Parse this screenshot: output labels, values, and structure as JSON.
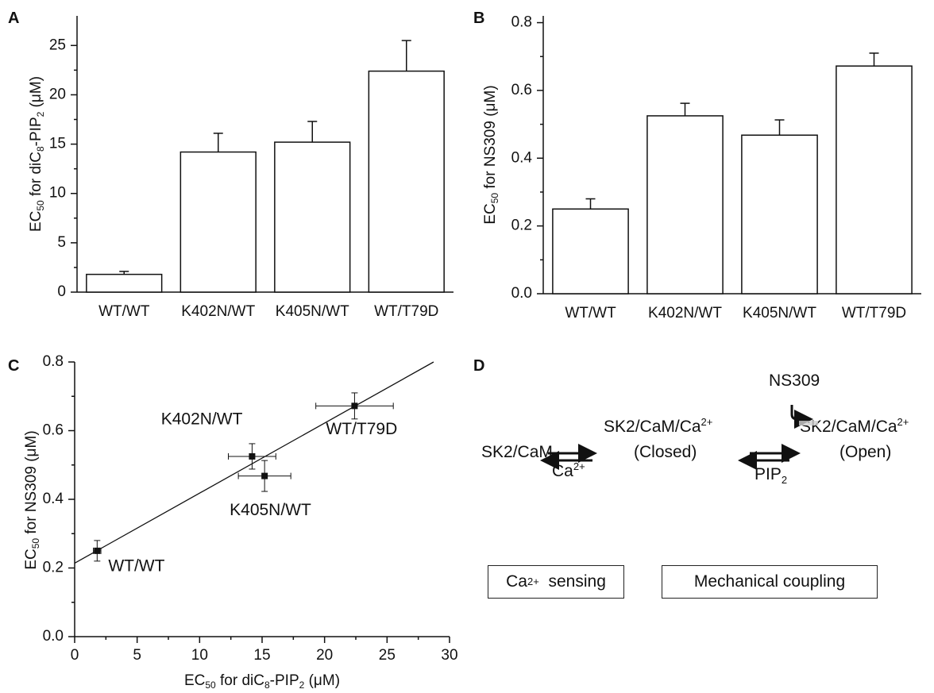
{
  "panels": {
    "a": "A",
    "b": "B",
    "c": "C",
    "d": "D"
  },
  "chart_data": [
    {
      "panel": "A",
      "type": "bar",
      "categories": [
        "WT/WT",
        "K402N/WT",
        "K405N/WT",
        "WT/T79D"
      ],
      "values": [
        1.8,
        14.2,
        15.2,
        22.4
      ],
      "errors": [
        0.3,
        1.9,
        2.1,
        3.1
      ],
      "ylabel": "EC50 for diC8-PIP2 (μM)",
      "ylim": [
        0,
        28
      ],
      "yticks": [
        0,
        5,
        10,
        15,
        20,
        25
      ]
    },
    {
      "panel": "B",
      "type": "bar",
      "categories": [
        "WT/WT",
        "K402N/WT",
        "K405N/WT",
        "WT/T79D"
      ],
      "values": [
        0.25,
        0.525,
        0.468,
        0.672
      ],
      "errors": [
        0.03,
        0.037,
        0.045,
        0.038
      ],
      "ylabel": "EC50 for NS309 (μM)",
      "ylim": [
        0,
        0.82
      ],
      "yticks": [
        "0.0",
        "0.2",
        "0.4",
        "0.6",
        "0.8"
      ]
    },
    {
      "panel": "C",
      "type": "scatter",
      "points": [
        {
          "label": "WT/WT",
          "x": 1.8,
          "y": 0.25,
          "xerr": 0.3,
          "yerr": 0.03
        },
        {
          "label": "K402N/WT",
          "x": 14.2,
          "y": 0.525,
          "xerr": 1.9,
          "yerr": 0.037
        },
        {
          "label": "K405N/WT",
          "x": 15.2,
          "y": 0.468,
          "xerr": 2.1,
          "yerr": 0.045
        },
        {
          "label": "WT/T79D",
          "x": 22.4,
          "y": 0.672,
          "xerr": 3.1,
          "yerr": 0.038
        }
      ],
      "fit_line": {
        "intercept": 0.214,
        "slope": 0.0204
      },
      "xlabel": "EC50 for diC8-PIP2 (μM)",
      "ylabel": "EC50 for NS309 (μM)",
      "xlim": [
        0,
        30
      ],
      "ylim": [
        0,
        0.8
      ],
      "xticks": [
        0,
        5,
        10,
        15,
        20,
        25,
        30
      ],
      "yticks": [
        "0.0",
        "0.2",
        "0.4",
        "0.6",
        "0.8"
      ]
    }
  ],
  "axis_label_parts": {
    "ec": "EC",
    "sub50": "50",
    "for_dic": "for diC",
    "sub8": "8",
    "pip": "-PIP",
    "sub2": "2",
    "unit": "(μM)",
    "for_ns": "for NS309"
  },
  "diagram": {
    "sk2cam": "SK2/CaM",
    "sk2cam_ca": "SK2/CaM/Ca",
    "sup2plus": "2+",
    "closed": "(Closed)",
    "open": "(Open)",
    "ca": "Ca",
    "pip": "PIP",
    "sub2": "2",
    "ns309": "NS309",
    "sensing_box_a": "Ca",
    "sensing_box_b": "sensing",
    "coupling_box": "Mechanical coupling"
  }
}
